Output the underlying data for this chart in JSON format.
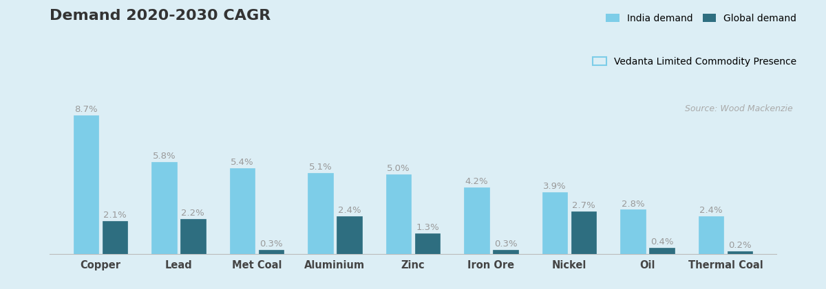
{
  "title": "Demand 2020-2030 CAGR",
  "categories": [
    "Copper",
    "Lead",
    "Met Coal",
    "Aluminium",
    "Zinc",
    "Iron Ore",
    "Nickel",
    "Oil",
    "Thermal Coal"
  ],
  "india_demand": [
    8.7,
    5.8,
    5.4,
    5.1,
    5.0,
    4.2,
    3.9,
    2.8,
    2.4
  ],
  "global_demand": [
    2.1,
    2.2,
    0.3,
    2.4,
    1.3,
    0.3,
    2.7,
    0.4,
    0.2
  ],
  "india_color": "#7DCDE8",
  "global_color": "#2E6E80",
  "background_color": "#DCEEF5",
  "vedanta_border_color": "#7DCDE8",
  "title_fontsize": 16,
  "label_fontsize": 9.5,
  "tick_fontsize": 10.5,
  "legend_india": "India demand",
  "legend_global": "Global demand",
  "legend_vedanta": "Vedanta Limited Commodity Presence",
  "source_text": "Source: Wood Mackenzie",
  "title_color": "#333333",
  "label_color": "#999999",
  "source_color": "#aaaaaa",
  "cat_label_color": "#444444"
}
